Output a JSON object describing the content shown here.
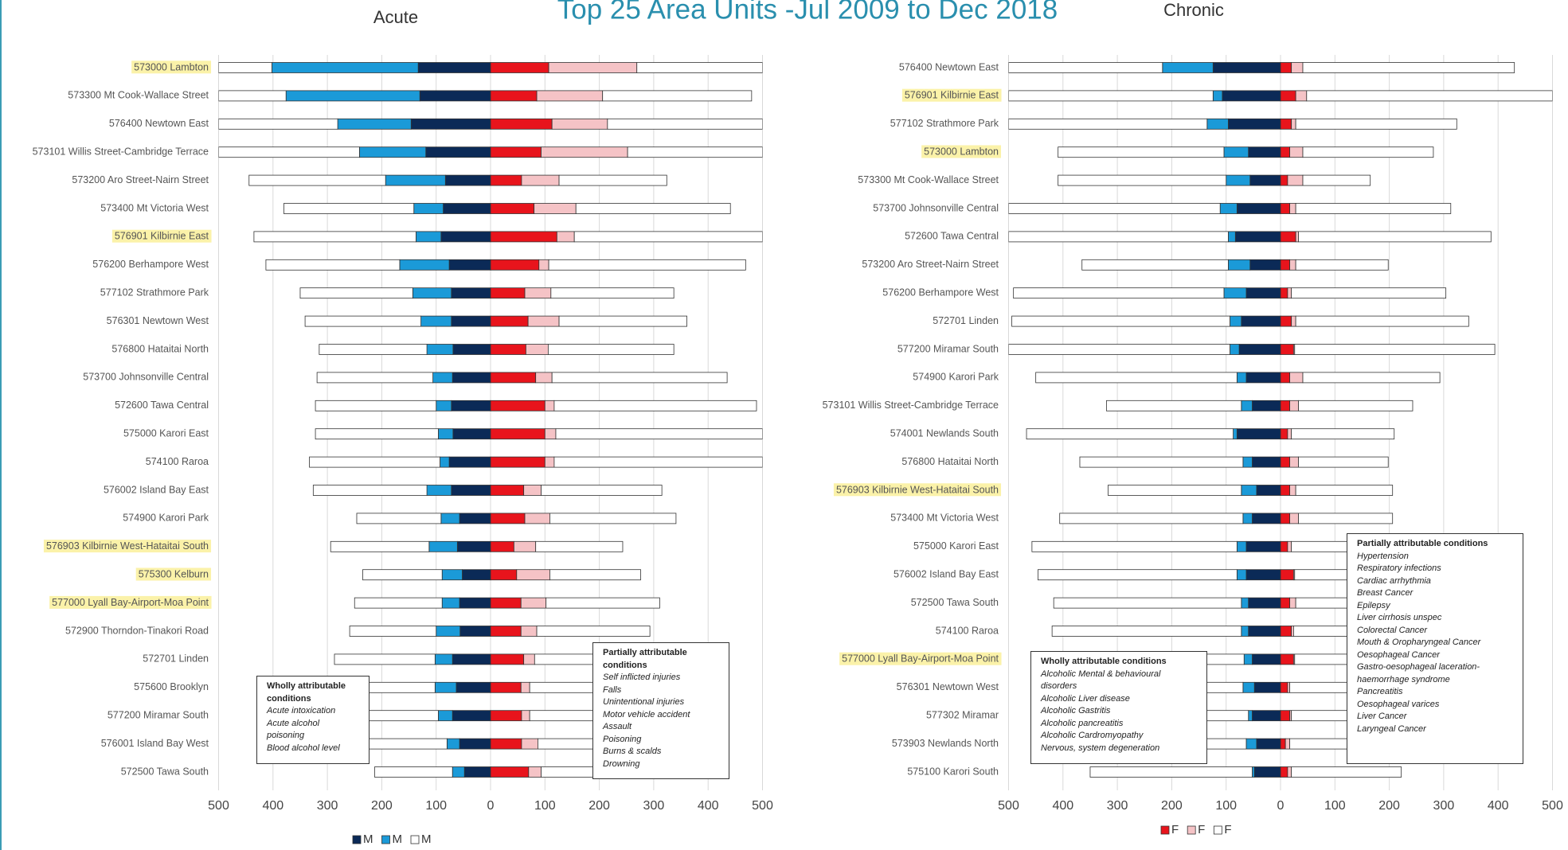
{
  "title": "Top 25 Area Units -Jul 2009 to Dec 2018",
  "chart_data": [
    {
      "type": "diverging_bar",
      "title": "Acute",
      "categories": [
        "573000 Lambton",
        "573300 Mt Cook-Wallace Street",
        "576400 Newtown East",
        "573101 Willis Street-Cambridge Terrace",
        "573200 Aro Street-Nairn Street",
        "573400 Mt Victoria West",
        "576901 Kilbirnie East",
        "576200 Berhampore West",
        "577102 Strathmore Park",
        "576301 Newtown West",
        "576800 Hataitai North",
        "573700 Johnsonville Central",
        "572600 Tawa Central",
        "575000 Karori East",
        "574100 Raroa",
        "576002 Island Bay East",
        "574900 Karori Park",
        "576903 Kilbirnie West-Hataitai South",
        "575300 Kelburn",
        "577000 Lyall Bay-Airport-Moa Point",
        "572900 Thorndon-Tinakori Road",
        "572701 Linden",
        "575600 Brooklyn",
        "577200 Miramar South",
        "576001 Island Bay West",
        "572500 Tawa South"
      ],
      "highlighted": [
        true,
        false,
        false,
        false,
        false,
        false,
        true,
        false,
        false,
        false,
        false,
        false,
        false,
        false,
        false,
        false,
        false,
        true,
        true,
        true,
        false,
        false,
        false,
        false,
        false,
        false
      ],
      "series": [
        {
          "name": "M",
          "side": "left",
          "legend": true,
          "color": "#0b2a57",
          "values": [
            133,
            130,
            146,
            119,
            83,
            87,
            91,
            76,
            72,
            72,
            69,
            70,
            72,
            69,
            76,
            72,
            57,
            61,
            52,
            57,
            56,
            70,
            63,
            70,
            57,
            48
          ]
        },
        {
          "name": "M",
          "side": "left",
          "legend": true,
          "color": "#1b9ad8",
          "values": [
            269,
            246,
            135,
            122,
            110,
            54,
            46,
            91,
            71,
            56,
            48,
            36,
            28,
            27,
            17,
            45,
            34,
            52,
            37,
            32,
            44,
            32,
            39,
            26,
            23,
            22
          ]
        },
        {
          "name": "M",
          "side": "left",
          "legend": true,
          "color": "#ffffff",
          "values": [
            98,
            124,
            219,
            259,
            251,
            239,
            298,
            246,
            207,
            213,
            198,
            213,
            222,
            226,
            240,
            209,
            155,
            181,
            146,
            161,
            159,
            185,
            133,
            139,
            155,
            143
          ]
        },
        {
          "name": "F",
          "side": "right",
          "legend": false,
          "color": "#e8141c",
          "values": [
            107,
            85,
            113,
            93,
            57,
            80,
            122,
            89,
            63,
            69,
            65,
            83,
            100,
            100,
            100,
            61,
            63,
            43,
            48,
            56,
            56,
            61,
            56,
            57,
            57,
            70
          ]
        },
        {
          "name": "F",
          "side": "right",
          "legend": false,
          "color": "#f5c3c6",
          "values": [
            162,
            121,
            102,
            159,
            69,
            77,
            32,
            18,
            48,
            57,
            41,
            30,
            17,
            20,
            17,
            32,
            46,
            40,
            61,
            46,
            29,
            20,
            16,
            15,
            30,
            23
          ]
        },
        {
          "name": "F",
          "side": "right",
          "legend": false,
          "color": "#ffffff",
          "values": [
            231,
            274,
            285,
            248,
            198,
            284,
            346,
            362,
            226,
            235,
            231,
            322,
            372,
            380,
            383,
            222,
            232,
            160,
            167,
            209,
            208,
            110,
            119,
            119,
            104,
            98
          ]
        }
      ],
      "xlim": [
        -500,
        500
      ],
      "xticks": [
        {
          "value": -500,
          "label": "500"
        },
        {
          "value": -400,
          "label": "400"
        },
        {
          "value": -300,
          "label": "300"
        },
        {
          "value": -200,
          "label": "200"
        },
        {
          "value": -100,
          "label": "100"
        },
        0,
        100,
        200,
        300,
        400,
        500
      ],
      "grid": true,
      "annotations": [
        {
          "title": "Wholly attributable conditions",
          "items": [
            "Acute intoxication",
            "Acute alcohol poisoning",
            "Blood alcohol level"
          ]
        },
        {
          "title": "Partially attributable conditions",
          "items": [
            "Self inflicted injuries",
            "Falls",
            "Unintentional injuries",
            "Motor vehicle accident",
            "Assault",
            "Poisoning",
            "Burns & scalds",
            "Drowning"
          ]
        }
      ]
    },
    {
      "type": "diverging_bar",
      "title": "Chronic",
      "categories": [
        "576400 Newtown East",
        "576901 Kilbirnie East",
        "577102 Strathmore Park",
        "573000 Lambton",
        "573300 Mt Cook-Wallace Street",
        "573700 Johnsonville Central",
        "572600 Tawa Central",
        "573200 Aro Street-Nairn Street",
        "576200 Berhampore West",
        "572701 Linden",
        "577200 Miramar South",
        "574900 Karori Park",
        "573101 Willis Street-Cambridge Terrace",
        "574001 Newlands South",
        "576800 Hataitai North",
        "576903 Kilbirnie West-Hataitai South",
        "573400 Mt Victoria West",
        "575000 Karori East",
        "576002 Island Bay East",
        "572500 Tawa South",
        "574100 Raroa",
        "577000 Lyall Bay-Airport-Moa Point",
        "576301 Newtown West",
        "577302 Miramar",
        "573903 Newlands North",
        "575100 Karori South"
      ],
      "highlighted": [
        false,
        true,
        false,
        true,
        false,
        false,
        false,
        false,
        false,
        false,
        false,
        false,
        false,
        false,
        false,
        true,
        false,
        false,
        false,
        false,
        false,
        true,
        false,
        false,
        false,
        false
      ],
      "series": [
        {
          "name": "M",
          "side": "left",
          "legend": false,
          "color": "#0b2a57",
          "values": [
            124,
            107,
            96,
            59,
            56,
            80,
            83,
            56,
            63,
            72,
            76,
            63,
            52,
            80,
            52,
            44,
            52,
            63,
            63,
            59,
            59,
            52,
            48,
            52,
            44,
            48
          ]
        },
        {
          "name": "M",
          "side": "left",
          "legend": false,
          "color": "#1b9ad8",
          "values": [
            93,
            17,
            39,
            45,
            44,
            31,
            13,
            40,
            41,
            21,
            17,
            17,
            20,
            7,
            17,
            28,
            17,
            17,
            17,
            13,
            13,
            15,
            21,
            7,
            19,
            4
          ]
        },
        {
          "name": "M",
          "side": "left",
          "legend": false,
          "color": "#ffffff",
          "values": [
            283,
            376,
            365,
            305,
            309,
            389,
            404,
            269,
            387,
            401,
            407,
            370,
            248,
            380,
            300,
            245,
            337,
            377,
            366,
            345,
            348,
            85,
            83,
            93,
            89,
            298
          ]
        },
        {
          "name": "F",
          "side": "right",
          "legend": true,
          "color": "#e8141c",
          "values": [
            20,
            28,
            20,
            17,
            13,
            17,
            28,
            17,
            13,
            20,
            24,
            17,
            17,
            13,
            17,
            17,
            17,
            13,
            24,
            17,
            20,
            24,
            13,
            17,
            9,
            13
          ]
        },
        {
          "name": "F",
          "side": "right",
          "legend": true,
          "color": "#f5c3c6",
          "values": [
            21,
            20,
            8,
            24,
            28,
            11,
            5,
            11,
            7,
            8,
            2,
            24,
            16,
            7,
            16,
            11,
            16,
            7,
            2,
            11,
            4,
            2,
            4,
            3,
            8,
            7
          ]
        },
        {
          "name": "F",
          "side": "right",
          "legend": true,
          "color": "#ffffff",
          "values": [
            389,
            452,
            296,
            240,
            124,
            285,
            354,
            170,
            284,
            318,
            368,
            252,
            210,
            189,
            165,
            178,
            173,
            106,
            100,
            98,
            102,
            100,
            109,
            106,
            109,
            202
          ]
        }
      ],
      "xlim": [
        -500,
        500
      ],
      "xticks": [
        {
          "value": -500,
          "label": "500"
        },
        {
          "value": -400,
          "label": "400"
        },
        {
          "value": -300,
          "label": "300"
        },
        {
          "value": -200,
          "label": "200"
        },
        {
          "value": -100,
          "label": "100"
        },
        0,
        100,
        200,
        300,
        400,
        500
      ],
      "grid": true,
      "annotations": [
        {
          "title": "Wholly attributable conditions",
          "items": [
            "Alcoholic Mental & behavioural disorders",
            "Alcoholic Liver disease",
            "Alcoholic Gastritis",
            "Alcoholic pancreatitis",
            "Alcoholic Cardromyopathy",
            "Nervous, system degeneration"
          ]
        },
        {
          "title": "Partially attributable conditions",
          "items": [
            "Hypertension",
            "Respiratory infections",
            "Cardiac arrhythmia",
            "Breast Cancer",
            "Epilepsy",
            "Liver cirrhosis unspec",
            "Colorectal Cancer",
            "Mouth & Oropharyngeal Cancer",
            "Oesophageal Cancer",
            "Gastro-oesophageal laceration-haemorrhage syndrome",
            "Pancreatitis",
            "Oesophageal varices",
            "Liver Cancer",
            "Laryngeal Cancer"
          ]
        }
      ]
    }
  ]
}
